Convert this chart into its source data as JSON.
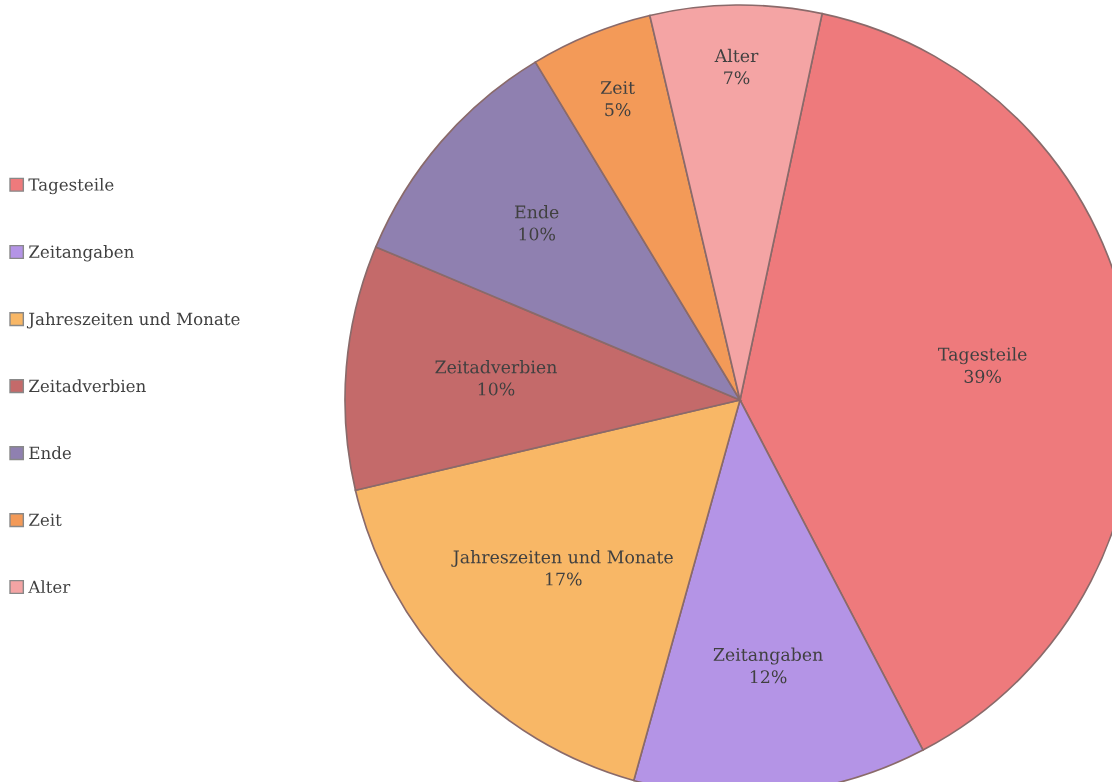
{
  "chart_data": {
    "type": "pie",
    "categories": [
      "Tagesteile",
      "Zeitangaben",
      "Jahreszeiten und Monate",
      "Zeitadverbien",
      "Ende",
      "Zeit",
      "Alter"
    ],
    "values": [
      39,
      12,
      17,
      10,
      10,
      5,
      7
    ],
    "value_labels": [
      "39%",
      "12%",
      "17%",
      "10%",
      "10%",
      "5%",
      "7%"
    ],
    "colors": [
      "#ee7a7c",
      "#b494e6",
      "#f8b766",
      "#c46a6a",
      "#8f80b0",
      "#f39a58",
      "#f4a4a4"
    ],
    "legend": "left"
  }
}
